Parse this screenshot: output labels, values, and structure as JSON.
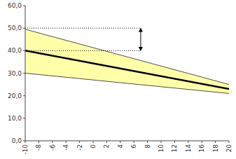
{
  "chart_data": {
    "type": "line",
    "background_color": "#ffffff",
    "x": [
      -10,
      20
    ],
    "series": [
      {
        "type": "area",
        "color": "#ffffaa",
        "values": [
          49.5,
          25.0
        ],
        "lower": [
          30.0,
          21.0
        ]
      },
      {
        "type": "line",
        "color": "#222222",
        "line_style": "solid",
        "values": [
          49.5,
          25.0
        ]
      },
      {
        "type": "line",
        "color": "#222222",
        "line_style": "solid",
        "values": [
          30.0,
          21.0
        ]
      },
      {
        "type": "line",
        "color": "#000000",
        "line_style": "solid",
        "values": [
          40.0,
          23.0
        ]
      }
    ],
    "reference_lines": [
      {
        "y": 50.0,
        "x_start": -10,
        "x_end": 7,
        "line_style": "dotted",
        "color": "#000000"
      },
      {
        "y": 40.0,
        "x_start": -10,
        "x_end": 7,
        "line_style": "dotted",
        "color": "#000000"
      }
    ],
    "arrows": [
      {
        "x": 7,
        "y_start": 50.0,
        "y_end": 40.0,
        "color": "#000000"
      }
    ],
    "xlim": [
      -10,
      20
    ],
    "ylim": [
      0,
      60
    ],
    "xticks": [
      -10,
      -8,
      -6,
      -4,
      -2,
      0,
      2,
      4,
      6,
      8,
      10,
      12,
      14,
      16,
      18,
      20
    ],
    "yticks": [
      {
        "value": 0,
        "label": "0,0"
      },
      {
        "value": 10,
        "label": "10,0"
      },
      {
        "value": 20,
        "label": "20,0"
      },
      {
        "value": 30,
        "label": "30,0"
      },
      {
        "value": 40,
        "label": "40,0"
      },
      {
        "value": 50,
        "label": "50,0"
      },
      {
        "value": 60,
        "label": "60,0"
      }
    ],
    "grid": false
  }
}
